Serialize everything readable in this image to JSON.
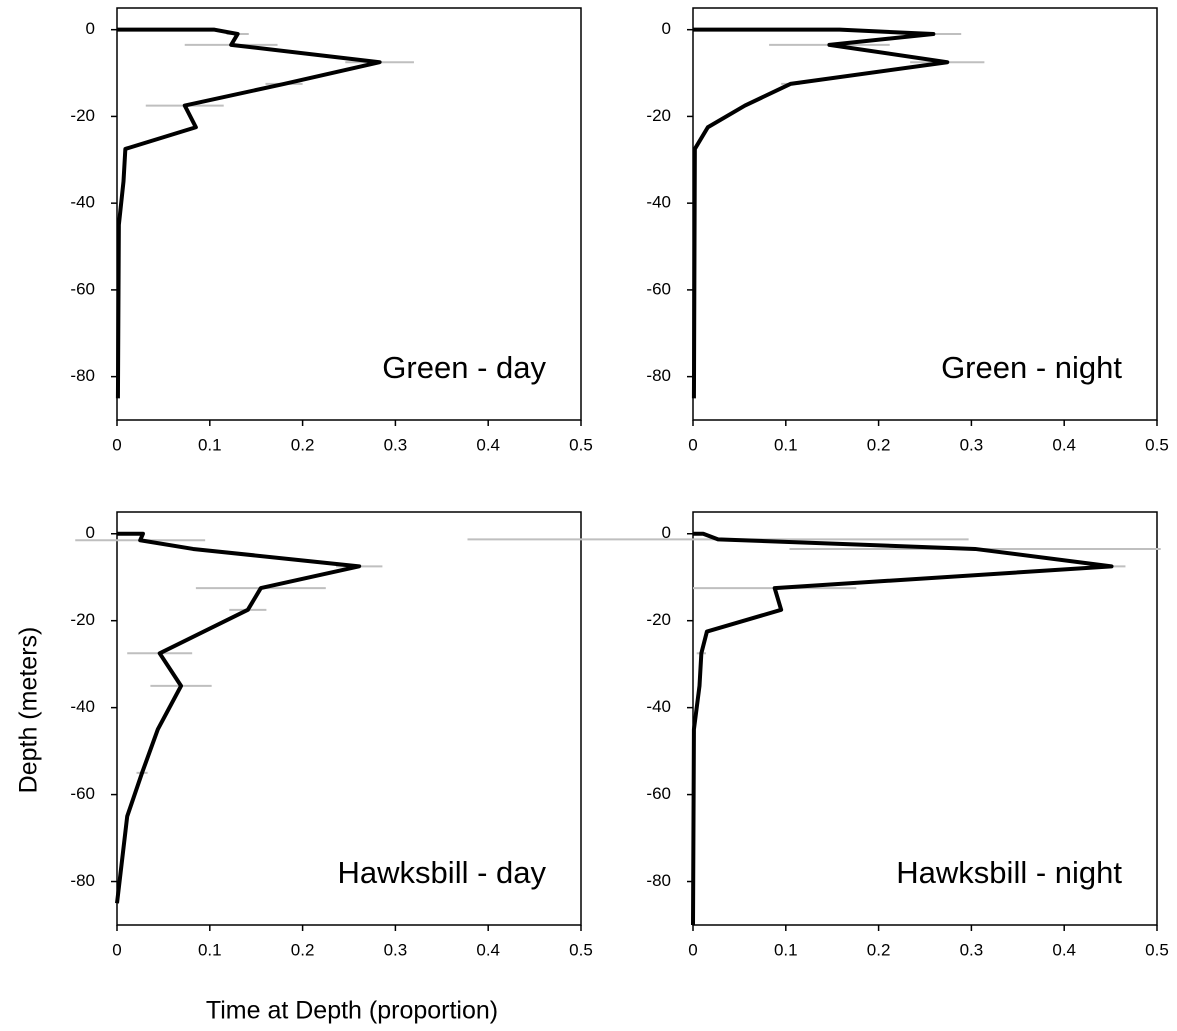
{
  "xlabel": "Time at Depth (proportion)",
  "ylabel": "Depth (meters)",
  "chart_data": [
    {
      "type": "line",
      "orientation": "horizontal",
      "title": "Green - day",
      "color": "#000000",
      "error_color": "#bfbfbf",
      "y": [
        0,
        0,
        -1,
        -3.5,
        -7.5,
        -12.5,
        -17.5,
        -22.5,
        -27.5,
        -35,
        -45,
        -85
      ],
      "values": [
        0,
        0.105,
        0.13,
        0.123,
        0.283,
        0.18,
        0.073,
        0.085,
        0.009,
        0.007,
        0.002,
        0.001
      ],
      "errors": [
        null,
        null,
        0.012,
        0.05,
        0.037,
        0.02,
        0.042,
        null,
        null,
        null,
        null,
        null
      ],
      "xlim": [
        0,
        0.5
      ],
      "xticks": [
        0,
        0.1,
        0.2,
        0.3,
        0.4,
        0.5
      ],
      "ylim": [
        -90,
        5
      ],
      "yticks": [
        0,
        -20,
        -40,
        -60,
        -80
      ]
    },
    {
      "type": "line",
      "orientation": "horizontal",
      "title": "Green - night",
      "color": "#000000",
      "error_color": "#bfbfbf",
      "y": [
        0,
        0,
        -1,
        -3.5,
        -7.5,
        -12.5,
        -17.5,
        -22.5,
        -27.5,
        -85
      ],
      "values": [
        0,
        0.158,
        0.259,
        0.147,
        0.274,
        0.105,
        0.056,
        0.016,
        0.002,
        0.001
      ],
      "errors": [
        null,
        null,
        0.03,
        0.065,
        0.04,
        0.01,
        null,
        null,
        null,
        null
      ],
      "xlim": [
        0,
        0.5
      ],
      "xticks": [
        0,
        0.1,
        0.2,
        0.3,
        0.4,
        0.5
      ],
      "ylim": [
        -90,
        5
      ],
      "yticks": [
        0,
        -20,
        -40,
        -60,
        -80
      ]
    },
    {
      "type": "line",
      "orientation": "horizontal",
      "title": "Hawksbill - day",
      "color": "#000000",
      "error_color": "#bfbfbf",
      "y": [
        0,
        0,
        -1.5,
        -3.5,
        -7.5,
        -12.5,
        -17.5,
        -27.5,
        -35,
        -45,
        -55,
        -65,
        -85
      ],
      "values": [
        0,
        0.028,
        0.025,
        0.082,
        0.261,
        0.155,
        0.141,
        0.046,
        0.069,
        0.044,
        0.027,
        0.011,
        0
      ],
      "errors": [
        null,
        null,
        0.07,
        null,
        0.025,
        0.07,
        0.02,
        0.035,
        0.033,
        null,
        0.006,
        null,
        null
      ],
      "xlim": [
        0,
        0.5
      ],
      "xticks": [
        0,
        0.1,
        0.2,
        0.3,
        0.4,
        0.5
      ],
      "ylim": [
        -90,
        5
      ],
      "yticks": [
        0,
        -20,
        -40,
        -60,
        -80
      ]
    },
    {
      "type": "line",
      "orientation": "horizontal",
      "title": "Hawksbill - night",
      "color": "#000000",
      "error_color": "#bfbfbf",
      "y": [
        0,
        0,
        -1.3,
        -3.5,
        -7.5,
        -12.5,
        -17.5,
        -22.5,
        -27.5,
        -35,
        -45,
        -90
      ],
      "values": [
        0,
        0.011,
        0.027,
        0.304,
        0.451,
        0.088,
        0.095,
        0.015,
        0.009,
        0.007,
        0.001,
        0
      ],
      "errors": [
        null,
        null,
        0.27,
        0.2,
        0.015,
        0.088,
        null,
        null,
        0.005,
        null,
        null,
        null
      ],
      "xlim": [
        0,
        0.5
      ],
      "xticks": [
        0,
        0.1,
        0.2,
        0.3,
        0.4,
        0.5
      ],
      "ylim": [
        -90,
        5
      ],
      "yticks": [
        0,
        -20,
        -40,
        -60,
        -80
      ]
    }
  ]
}
